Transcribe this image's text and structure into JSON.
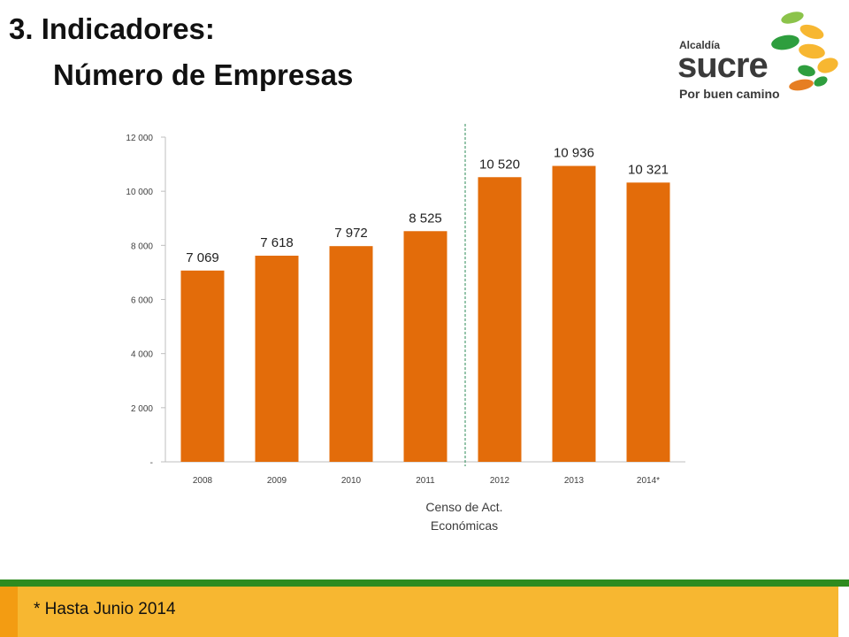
{
  "header": {
    "title_line1": "3. Indicadores:",
    "title_line2": "Número de Empresas"
  },
  "logo": {
    "small_text": "Alcaldía",
    "main_text": "sucre",
    "tagline": "Por buen camino",
    "colors": [
      "#2e9e3e",
      "#f7b731",
      "#e67e22",
      "#8bc34a"
    ]
  },
  "chart_data": {
    "type": "bar",
    "categories": [
      "2008",
      "2009",
      "2010",
      "2011",
      "2012",
      "2013",
      "2014*"
    ],
    "values": [
      7069,
      7618,
      7972,
      8525,
      10520,
      10936,
      10321
    ],
    "data_labels": [
      "7 069",
      "7 618",
      "7 972",
      "8 525",
      "10 520",
      "10 936",
      "10 321"
    ],
    "ylim": [
      0,
      12000
    ],
    "yticks": [
      0,
      2000,
      4000,
      6000,
      8000,
      10000,
      12000
    ],
    "ytick_labels": [
      "-",
      "2 000",
      "4 000",
      "6 000",
      "8 000",
      "10 000",
      "12 000"
    ],
    "bar_color": "#e36c0a",
    "grid": false,
    "divider_after_category": "2011",
    "divider_color": "#2e8b57",
    "divider_note": "Censo de Act. Económicas"
  },
  "footer": {
    "footnote": "* Hasta Junio 2014"
  }
}
